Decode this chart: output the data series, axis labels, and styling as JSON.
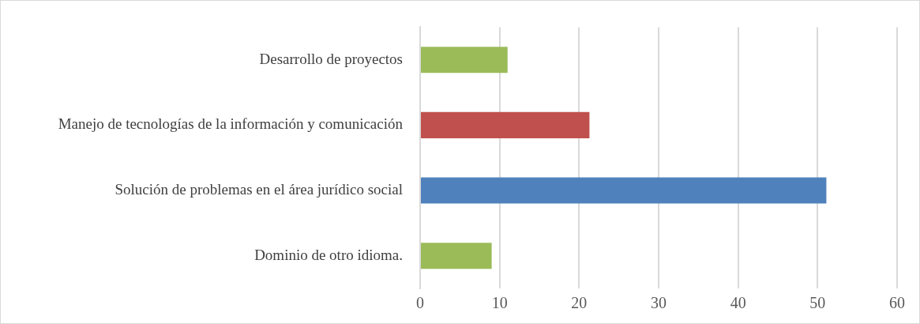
{
  "chart_data": {
    "type": "bar",
    "orientation": "horizontal",
    "categories": [
      "Desarrollo de proyectos",
      "Manejo de tecnologías de la información y comunicación",
      "Solución de problemas en el área jurídico social",
      "Dominio de otro idioma."
    ],
    "values": [
      11,
      21.3,
      51.1,
      9
    ],
    "colors": [
      "#9bbb59",
      "#c0504d",
      "#4f81bd",
      "#9bbb59"
    ],
    "xlim": [
      0,
      60
    ],
    "xticks": [
      0,
      10,
      20,
      30,
      40,
      50,
      60
    ],
    "grid": "x",
    "legend": false
  }
}
